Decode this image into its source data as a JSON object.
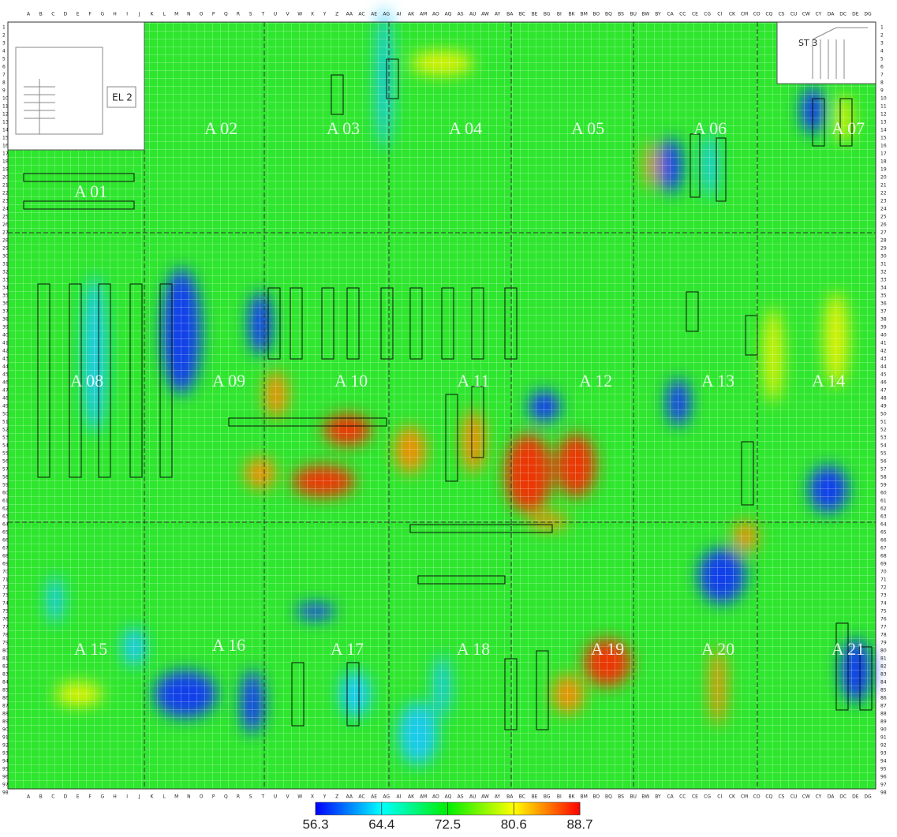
{
  "floor_plan": {
    "column_labels": [
      "A",
      "B",
      "C",
      "D",
      "E",
      "F",
      "G",
      "H",
      "I",
      "J",
      "K",
      "L",
      "M",
      "N",
      "O",
      "P",
      "Q",
      "R",
      "S",
      "T",
      "U",
      "V",
      "W",
      "X",
      "Y",
      "Z",
      "AA",
      "AC",
      "AE",
      "AG",
      "AI",
      "AK",
      "AM",
      "AO",
      "AQ",
      "AS",
      "AU",
      "AW",
      "AY",
      "BA",
      "BC",
      "BE",
      "BG",
      "BI",
      "BK",
      "BM",
      "BO",
      "BQ",
      "BS",
      "BU",
      "BW",
      "BY",
      "CA",
      "CC",
      "CE",
      "CG",
      "CI",
      "CK",
      "CM",
      "CO",
      "CQ",
      "CS",
      "CU",
      "CW",
      "CY",
      "DA",
      "DC",
      "DE",
      "DG"
    ],
    "row_labels": [
      1,
      2,
      3,
      4,
      5,
      6,
      7,
      8,
      9,
      10,
      11,
      12,
      13,
      14,
      15,
      16,
      17,
      18,
      19,
      20,
      21,
      22,
      23,
      24,
      25,
      26,
      27,
      28,
      29,
      30,
      31,
      32,
      33,
      34,
      35,
      36,
      37,
      38,
      39,
      40,
      41,
      42,
      43,
      44,
      45,
      46,
      47,
      48,
      49,
      50,
      51,
      52,
      53,
      54,
      55,
      56,
      57,
      58,
      59,
      60,
      61,
      62,
      63,
      64,
      65,
      66,
      67,
      68,
      69,
      70,
      71,
      72,
      73,
      74,
      75,
      76,
      77,
      78,
      79,
      80,
      81,
      82,
      83,
      84,
      85,
      86,
      87,
      88,
      89,
      90,
      91,
      92,
      93,
      94,
      95,
      96,
      97,
      98
    ],
    "areas": [
      "A 01",
      "A 02",
      "A 03",
      "A 04",
      "A 05",
      "A 06",
      "A 07",
      "A 08",
      "A 09",
      "A 10",
      "A 11",
      "A 12",
      "A 13",
      "A 14",
      "A 15",
      "A 16",
      "A 17",
      "A 18",
      "A 19",
      "A 20",
      "A 21"
    ],
    "elevator": "EL 2",
    "stair": "ST 3"
  },
  "colorbar": {
    "ticks": [
      56.3,
      64.4,
      72.5,
      80.6,
      88.7
    ],
    "colors": [
      "#0000ff",
      "#00ffff",
      "#00ee00",
      "#ffff00",
      "#ff0000"
    ]
  }
}
